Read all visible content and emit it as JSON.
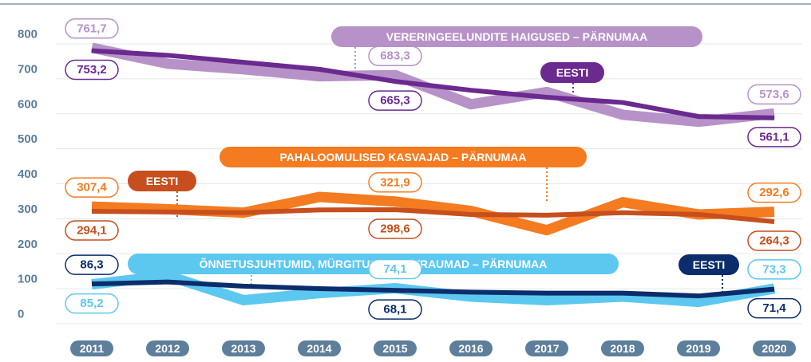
{
  "chart_data": {
    "type": "line",
    "categories": [
      "2011",
      "2012",
      "2013",
      "2014",
      "2015",
      "2016",
      "2017",
      "2018",
      "2019",
      "2020"
    ],
    "ylim": [
      0,
      800
    ],
    "yticks": [
      0,
      100,
      200,
      300,
      400,
      500,
      600,
      700,
      800
    ],
    "grid": true,
    "series": [
      {
        "name": "VERERINGEELUNDITE HAIGUSED – PÄRNUMAA",
        "color": "#b792c8",
        "values": [
          761.7,
          716,
          700,
          680,
          683.3,
          600,
          635,
          570,
          550,
          573.6
        ],
        "value_labels": [
          "761,7",
          null,
          null,
          null,
          "683,3",
          null,
          null,
          null,
          null,
          "573,6"
        ]
      },
      {
        "name": "EESTI",
        "color": "#6b2a8f",
        "values": [
          753.2,
          740,
          720,
          700,
          665.3,
          640,
          620,
          605,
          565,
          561.1
        ],
        "value_labels": [
          "753,2",
          null,
          null,
          null,
          "665,3",
          null,
          null,
          null,
          null,
          "561,1"
        ]
      },
      {
        "name": "PAHALOOMULISED KASVAJAD – PÄRNUMAA",
        "color": "#f47b20",
        "values": [
          307.4,
          300,
          290,
          335,
          321.9,
          295,
          240,
          320,
          285,
          292.6
        ],
        "value_labels": [
          "307,4",
          null,
          null,
          null,
          "321,9",
          null,
          null,
          null,
          null,
          "292,6"
        ]
      },
      {
        "name": "EESTI",
        "color": "#c64f1d",
        "values": [
          294.1,
          292,
          290,
          298,
          298.6,
          285,
          283,
          290,
          285,
          264.3
        ],
        "value_labels": [
          "294,1",
          null,
          null,
          null,
          "298,6",
          null,
          null,
          null,
          null,
          "264,3"
        ]
      },
      {
        "name": "ÕNNETUSJUHTUMID, MÜRGITUSED JA TRAUMAD – PÄRNUMAA",
        "color": "#5cc8f0",
        "values": [
          85.2,
          110,
          40,
          60,
          74.1,
          50,
          40,
          50,
          35,
          73.3
        ],
        "value_labels": [
          "85,2",
          null,
          null,
          null,
          "74,1",
          null,
          null,
          null,
          null,
          "73,3"
        ]
      },
      {
        "name": "EESTI",
        "color": "#0b2d6b",
        "values": [
          86.3,
          92,
          80,
          73,
          68.1,
          63,
          60,
          60,
          52,
          71.4
        ],
        "value_labels": [
          "86,3",
          null,
          null,
          null,
          "68,1",
          null,
          null,
          null,
          null,
          "71,4"
        ]
      }
    ]
  }
}
